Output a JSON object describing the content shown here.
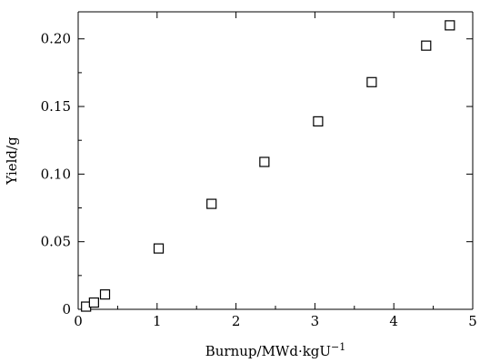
{
  "chart_data": {
    "type": "scatter",
    "title": "",
    "xlabel": "Burnup/MWd·kgU",
    "xlabel_superscript": "−1",
    "ylabel": "Yield/g",
    "xlim": [
      0,
      5
    ],
    "ylim": [
      0,
      0.22
    ],
    "x_ticks": [
      0,
      1,
      2,
      3,
      4,
      5
    ],
    "x_tick_labels": [
      "0",
      "1",
      "2",
      "3",
      "4",
      "5"
    ],
    "y_ticks": [
      0,
      0.05,
      0.1,
      0.15,
      0.2
    ],
    "y_tick_labels": [
      "0",
      "0.05",
      "0.10",
      "0.15",
      "0.20"
    ],
    "grid": false,
    "legend": "none",
    "marker": "open-square",
    "series": [
      {
        "x": [
          0.1,
          0.2,
          0.34,
          1.02,
          1.69,
          2.36,
          3.04,
          3.72,
          4.41,
          4.71
        ],
        "y": [
          0.002,
          0.005,
          0.011,
          0.045,
          0.078,
          0.109,
          0.139,
          0.168,
          0.195,
          0.21
        ]
      }
    ]
  }
}
